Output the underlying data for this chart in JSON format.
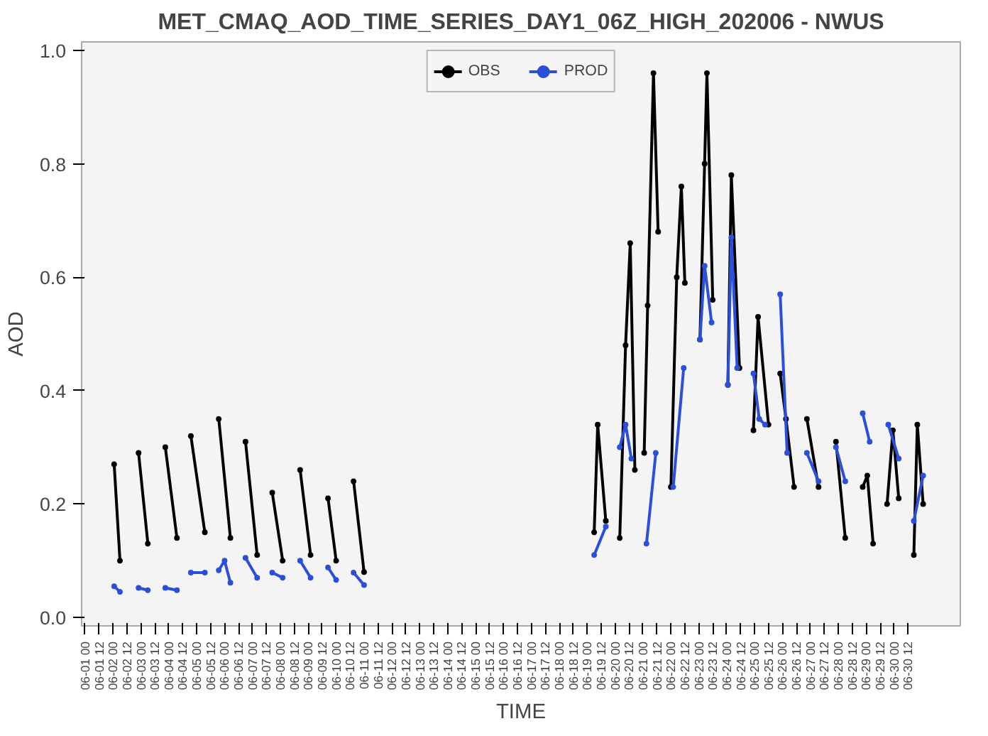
{
  "chart_data": {
    "type": "line",
    "title": "MET_CMAQ_AOD_TIME_SERIES_DAY1_06Z_HIGH_202006 - NWUS",
    "xlabel": "TIME",
    "ylabel": "AOD",
    "xlim": [
      "2020-05-31T21:00",
      "2020-07-02T09:00"
    ],
    "ylim": [
      -0.015,
      1.015
    ],
    "yticks": [
      {
        "value": 0,
        "label": "0.0"
      },
      {
        "value": 0.2,
        "label": "0.2"
      },
      {
        "value": 0.4,
        "label": "0.4"
      },
      {
        "value": 0.6,
        "label": "0.6"
      },
      {
        "value": 0.8,
        "label": "0.8"
      },
      {
        "value": 1,
        "label": "1.0"
      }
    ],
    "xticks": [
      {
        "value": "2020-06-01T00:00",
        "label": "06-01 00"
      },
      {
        "value": "2020-06-01T12:00",
        "label": "06-01 12"
      },
      {
        "value": "2020-06-02T00:00",
        "label": "06-02 00"
      },
      {
        "value": "2020-06-02T12:00",
        "label": "06-02 12"
      },
      {
        "value": "2020-06-03T00:00",
        "label": "06-03 00"
      },
      {
        "value": "2020-06-03T12:00",
        "label": "06-03 12"
      },
      {
        "value": "2020-06-04T00:00",
        "label": "06-04 00"
      },
      {
        "value": "2020-06-04T12:00",
        "label": "06-04 12"
      },
      {
        "value": "2020-06-05T00:00",
        "label": "06-05 00"
      },
      {
        "value": "2020-06-05T12:00",
        "label": "06-05 12"
      },
      {
        "value": "2020-06-06T00:00",
        "label": "06-06 00"
      },
      {
        "value": "2020-06-06T12:00",
        "label": "06-06 12"
      },
      {
        "value": "2020-06-07T00:00",
        "label": "06-07 00"
      },
      {
        "value": "2020-06-07T12:00",
        "label": "06-07 12"
      },
      {
        "value": "2020-06-08T00:00",
        "label": "06-08 00"
      },
      {
        "value": "2020-06-08T12:00",
        "label": "06-08 12"
      },
      {
        "value": "2020-06-09T00:00",
        "label": "06-09 00"
      },
      {
        "value": "2020-06-09T12:00",
        "label": "06-09 12"
      },
      {
        "value": "2020-06-10T00:00",
        "label": "06-10 00"
      },
      {
        "value": "2020-06-10T12:00",
        "label": "06-10 12"
      },
      {
        "value": "2020-06-11T00:00",
        "label": "06-11 00"
      },
      {
        "value": "2020-06-11T12:00",
        "label": "06-11 12"
      },
      {
        "value": "2020-06-12T00:00",
        "label": "06-12 00"
      },
      {
        "value": "2020-06-12T12:00",
        "label": "06-12 12"
      },
      {
        "value": "2020-06-13T00:00",
        "label": "06-13 00"
      },
      {
        "value": "2020-06-13T12:00",
        "label": "06-13 12"
      },
      {
        "value": "2020-06-14T00:00",
        "label": "06-14 00"
      },
      {
        "value": "2020-06-14T12:00",
        "label": "06-14 12"
      },
      {
        "value": "2020-06-15T00:00",
        "label": "06-15 00"
      },
      {
        "value": "2020-06-15T12:00",
        "label": "06-15 12"
      },
      {
        "value": "2020-06-16T00:00",
        "label": "06-16 00"
      },
      {
        "value": "2020-06-16T12:00",
        "label": "06-16 12"
      },
      {
        "value": "2020-06-17T00:00",
        "label": "06-17 00"
      },
      {
        "value": "2020-06-17T12:00",
        "label": "06-17 12"
      },
      {
        "value": "2020-06-18T00:00",
        "label": "06-18 00"
      },
      {
        "value": "2020-06-18T12:00",
        "label": "06-18 12"
      },
      {
        "value": "2020-06-19T00:00",
        "label": "06-19 00"
      },
      {
        "value": "2020-06-19T12:00",
        "label": "06-19 12"
      },
      {
        "value": "2020-06-20T00:00",
        "label": "06-20 00"
      },
      {
        "value": "2020-06-20T12:00",
        "label": "06-20 12"
      },
      {
        "value": "2020-06-21T00:00",
        "label": "06-21 00"
      },
      {
        "value": "2020-06-21T12:00",
        "label": "06-21 12"
      },
      {
        "value": "2020-06-22T00:00",
        "label": "06-22 00"
      },
      {
        "value": "2020-06-22T12:00",
        "label": "06-22 12"
      },
      {
        "value": "2020-06-23T00:00",
        "label": "06-23 00"
      },
      {
        "value": "2020-06-23T12:00",
        "label": "06-23 12"
      },
      {
        "value": "2020-06-24T00:00",
        "label": "06-24 00"
      },
      {
        "value": "2020-06-24T12:00",
        "label": "06-24 12"
      },
      {
        "value": "2020-06-25T00:00",
        "label": "06-25 00"
      },
      {
        "value": "2020-06-25T12:00",
        "label": "06-25 12"
      },
      {
        "value": "2020-06-26T00:00",
        "label": "06-26 00"
      },
      {
        "value": "2020-06-26T12:00",
        "label": "06-26 12"
      },
      {
        "value": "2020-06-27T00:00",
        "label": "06-27 00"
      },
      {
        "value": "2020-06-27T12:00",
        "label": "06-27 12"
      },
      {
        "value": "2020-06-28T00:00",
        "label": "06-28 00"
      },
      {
        "value": "2020-06-28T12:00",
        "label": "06-28 12"
      },
      {
        "value": "2020-06-29T00:00",
        "label": "06-29 00"
      },
      {
        "value": "2020-06-29T12:00",
        "label": "06-29 12"
      },
      {
        "value": "2020-06-30T00:00",
        "label": "06-30 00"
      },
      {
        "value": "2020-06-30T12:00",
        "label": "06-30 12"
      }
    ],
    "legend": "top",
    "marker": "circle",
    "line_style": "solid",
    "grid": false,
    "series": [
      {
        "name": "OBS",
        "color": "#000000",
        "x": [
          "2020-06-02T01:00",
          "2020-06-02T06:00",
          "2020-06-02T11:00",
          "2020-06-02T22:00",
          "2020-06-03T06:00",
          "2020-06-03T12:00",
          "2020-06-03T21:00",
          "2020-06-04T07:00",
          "2020-06-04T13:00",
          "2020-06-04T19:00",
          "2020-06-05T07:00",
          "2020-06-05T14:00",
          "2020-06-05T19:00",
          "2020-06-06T05:00",
          "2020-06-06T10:00",
          "2020-06-06T18:00",
          "2020-06-07T04:00",
          "2020-06-07T11:00",
          "2020-06-07T17:00",
          "2020-06-08T02:00",
          "2020-06-08T10:00",
          "2020-06-08T17:00",
          "2020-06-09T02:00",
          "2020-06-09T08:00",
          "2020-06-09T17:00",
          "2020-06-10T00:00",
          "2020-06-10T06:00",
          "2020-06-10T15:00",
          "2020-06-11T00:00",
          "2020-06-15T04:00",
          "2020-06-19T06:00",
          "2020-06-19T09:00",
          "2020-06-19T16:00",
          "2020-06-19T22:00",
          "2020-06-20T04:00",
          "2020-06-20T09:00",
          "2020-06-20T13:00",
          "2020-06-20T17:00",
          "2020-06-20T21:00",
          "2020-06-21T01:00",
          "2020-06-21T04:00",
          "2020-06-21T09:00",
          "2020-06-21T13:00",
          "2020-06-21T18:00",
          "2020-06-22T00:00",
          "2020-06-22T05:00",
          "2020-06-22T09:00",
          "2020-06-22T12:00",
          "2020-06-22T18:00",
          "2020-06-23T01:00",
          "2020-06-23T05:00",
          "2020-06-23T07:00",
          "2020-06-23T12:00",
          "2020-06-23T18:00",
          "2020-06-24T01:00",
          "2020-06-24T04:00",
          "2020-06-24T11:00",
          "2020-06-24T17:00",
          "2020-06-24T23:00",
          "2020-06-25T03:00",
          "2020-06-25T12:00",
          "2020-06-25T17:00",
          "2020-06-25T22:00",
          "2020-06-26T03:00",
          "2020-06-26T10:00",
          "2020-06-26T15:00",
          "2020-06-26T21:00",
          "2020-06-27T07:00",
          "2020-06-27T16:00",
          "2020-06-27T22:00",
          "2020-06-28T06:00",
          "2020-06-28T14:00",
          "2020-06-28T21:00",
          "2020-06-29T01:00",
          "2020-06-29T06:00",
          "2020-06-29T12:00",
          "2020-06-29T18:00",
          "2020-06-29T23:00",
          "2020-06-30T04:00",
          "2020-06-30T10:00",
          "2020-06-30T17:00",
          "2020-06-30T20:00",
          "2020-07-01T01:00"
        ],
        "values": [
          0.27,
          0.1,
          null,
          0.29,
          0.13,
          null,
          0.3,
          0.14,
          null,
          0.32,
          0.15,
          null,
          0.35,
          0.14,
          null,
          0.31,
          0.11,
          null,
          0.22,
          0.1,
          null,
          0.26,
          0.11,
          null,
          0.21,
          0.1,
          null,
          0.24,
          0.08,
          null,
          0.15,
          0.34,
          0.17,
          null,
          0.14,
          0.48,
          0.66,
          0.26,
          null,
          0.29,
          0.55,
          0.96,
          0.68,
          null,
          0.23,
          0.6,
          0.76,
          0.59,
          null,
          0.49,
          0.8,
          0.96,
          0.56,
          null,
          0.41,
          0.78,
          0.44,
          null,
          0.33,
          0.53,
          0.34,
          null,
          0.43,
          0.35,
          0.23,
          null,
          0.35,
          0.23,
          null,
          0.31,
          0.14,
          null,
          0.23,
          0.25,
          0.13,
          null,
          0.2,
          0.33,
          0.21,
          null,
          0.11,
          0.34,
          0.2
        ]
      },
      {
        "name": "PROD",
        "color": "#2b4fd8",
        "x": [
          "2020-06-02T01:00",
          "2020-06-02T06:00",
          "2020-06-02T11:00",
          "2020-06-02T22:00",
          "2020-06-03T06:00",
          "2020-06-03T12:00",
          "2020-06-03T21:00",
          "2020-06-04T07:00",
          "2020-06-04T13:00",
          "2020-06-04T19:00",
          "2020-06-05T07:00",
          "2020-06-05T14:00",
          "2020-06-05T19:00",
          "2020-06-06T00:00",
          "2020-06-06T05:00",
          "2020-06-06T10:00",
          "2020-06-06T18:00",
          "2020-06-07T04:00",
          "2020-06-07T11:00",
          "2020-06-07T17:00",
          "2020-06-08T02:00",
          "2020-06-08T10:00",
          "2020-06-08T17:00",
          "2020-06-09T02:00",
          "2020-06-09T08:00",
          "2020-06-09T17:00",
          "2020-06-10T00:00",
          "2020-06-10T06:00",
          "2020-06-10T15:00",
          "2020-06-11T00:00",
          "2020-06-15T04:00",
          "2020-06-19T06:00",
          "2020-06-19T16:00",
          "2020-06-19T22:00",
          "2020-06-20T04:00",
          "2020-06-20T09:00",
          "2020-06-20T14:00",
          "2020-06-20T20:00",
          "2020-06-21T03:00",
          "2020-06-21T11:00",
          "2020-06-21T18:00",
          "2020-06-22T02:00",
          "2020-06-22T11:00",
          "2020-06-22T18:00",
          "2020-06-23T01:00",
          "2020-06-23T05:00",
          "2020-06-23T11:00",
          "2020-06-23T18:00",
          "2020-06-24T01:00",
          "2020-06-24T04:00",
          "2020-06-24T09:00",
          "2020-06-24T16:00",
          "2020-06-24T23:00",
          "2020-06-25T04:00",
          "2020-06-25T09:00",
          "2020-06-25T15:00",
          "2020-06-25T22:00",
          "2020-06-26T04:00",
          "2020-06-26T10:00",
          "2020-06-26T21:00",
          "2020-06-27T07:00",
          "2020-06-27T16:00",
          "2020-06-27T22:00",
          "2020-06-28T06:00",
          "2020-06-28T14:00",
          "2020-06-28T21:00",
          "2020-06-29T03:00",
          "2020-06-29T12:00",
          "2020-06-29T19:00",
          "2020-06-30T04:00",
          "2020-06-30T10:00",
          "2020-06-30T17:00",
          "2020-07-01T01:00"
        ],
        "values": [
          0.055,
          0.045,
          null,
          0.052,
          0.048,
          null,
          0.052,
          0.048,
          null,
          0.079,
          0.079,
          null,
          0.083,
          0.1,
          0.061,
          null,
          0.105,
          0.07,
          null,
          0.079,
          0.07,
          null,
          0.1,
          0.07,
          null,
          0.088,
          0.066,
          null,
          0.079,
          0.057,
          null,
          0.11,
          0.16,
          null,
          0.3,
          0.34,
          0.28,
          null,
          0.13,
          0.29,
          null,
          0.23,
          0.44,
          null,
          0.49,
          0.62,
          0.52,
          null,
          0.41,
          0.67,
          0.44,
          null,
          0.43,
          0.35,
          0.34,
          null,
          0.57,
          0.29,
          null,
          0.29,
          0.24,
          null,
          0.3,
          0.24,
          null,
          0.36,
          0.31,
          null,
          0.34,
          0.28,
          null,
          0.17,
          0.25
        ]
      }
    ]
  }
}
